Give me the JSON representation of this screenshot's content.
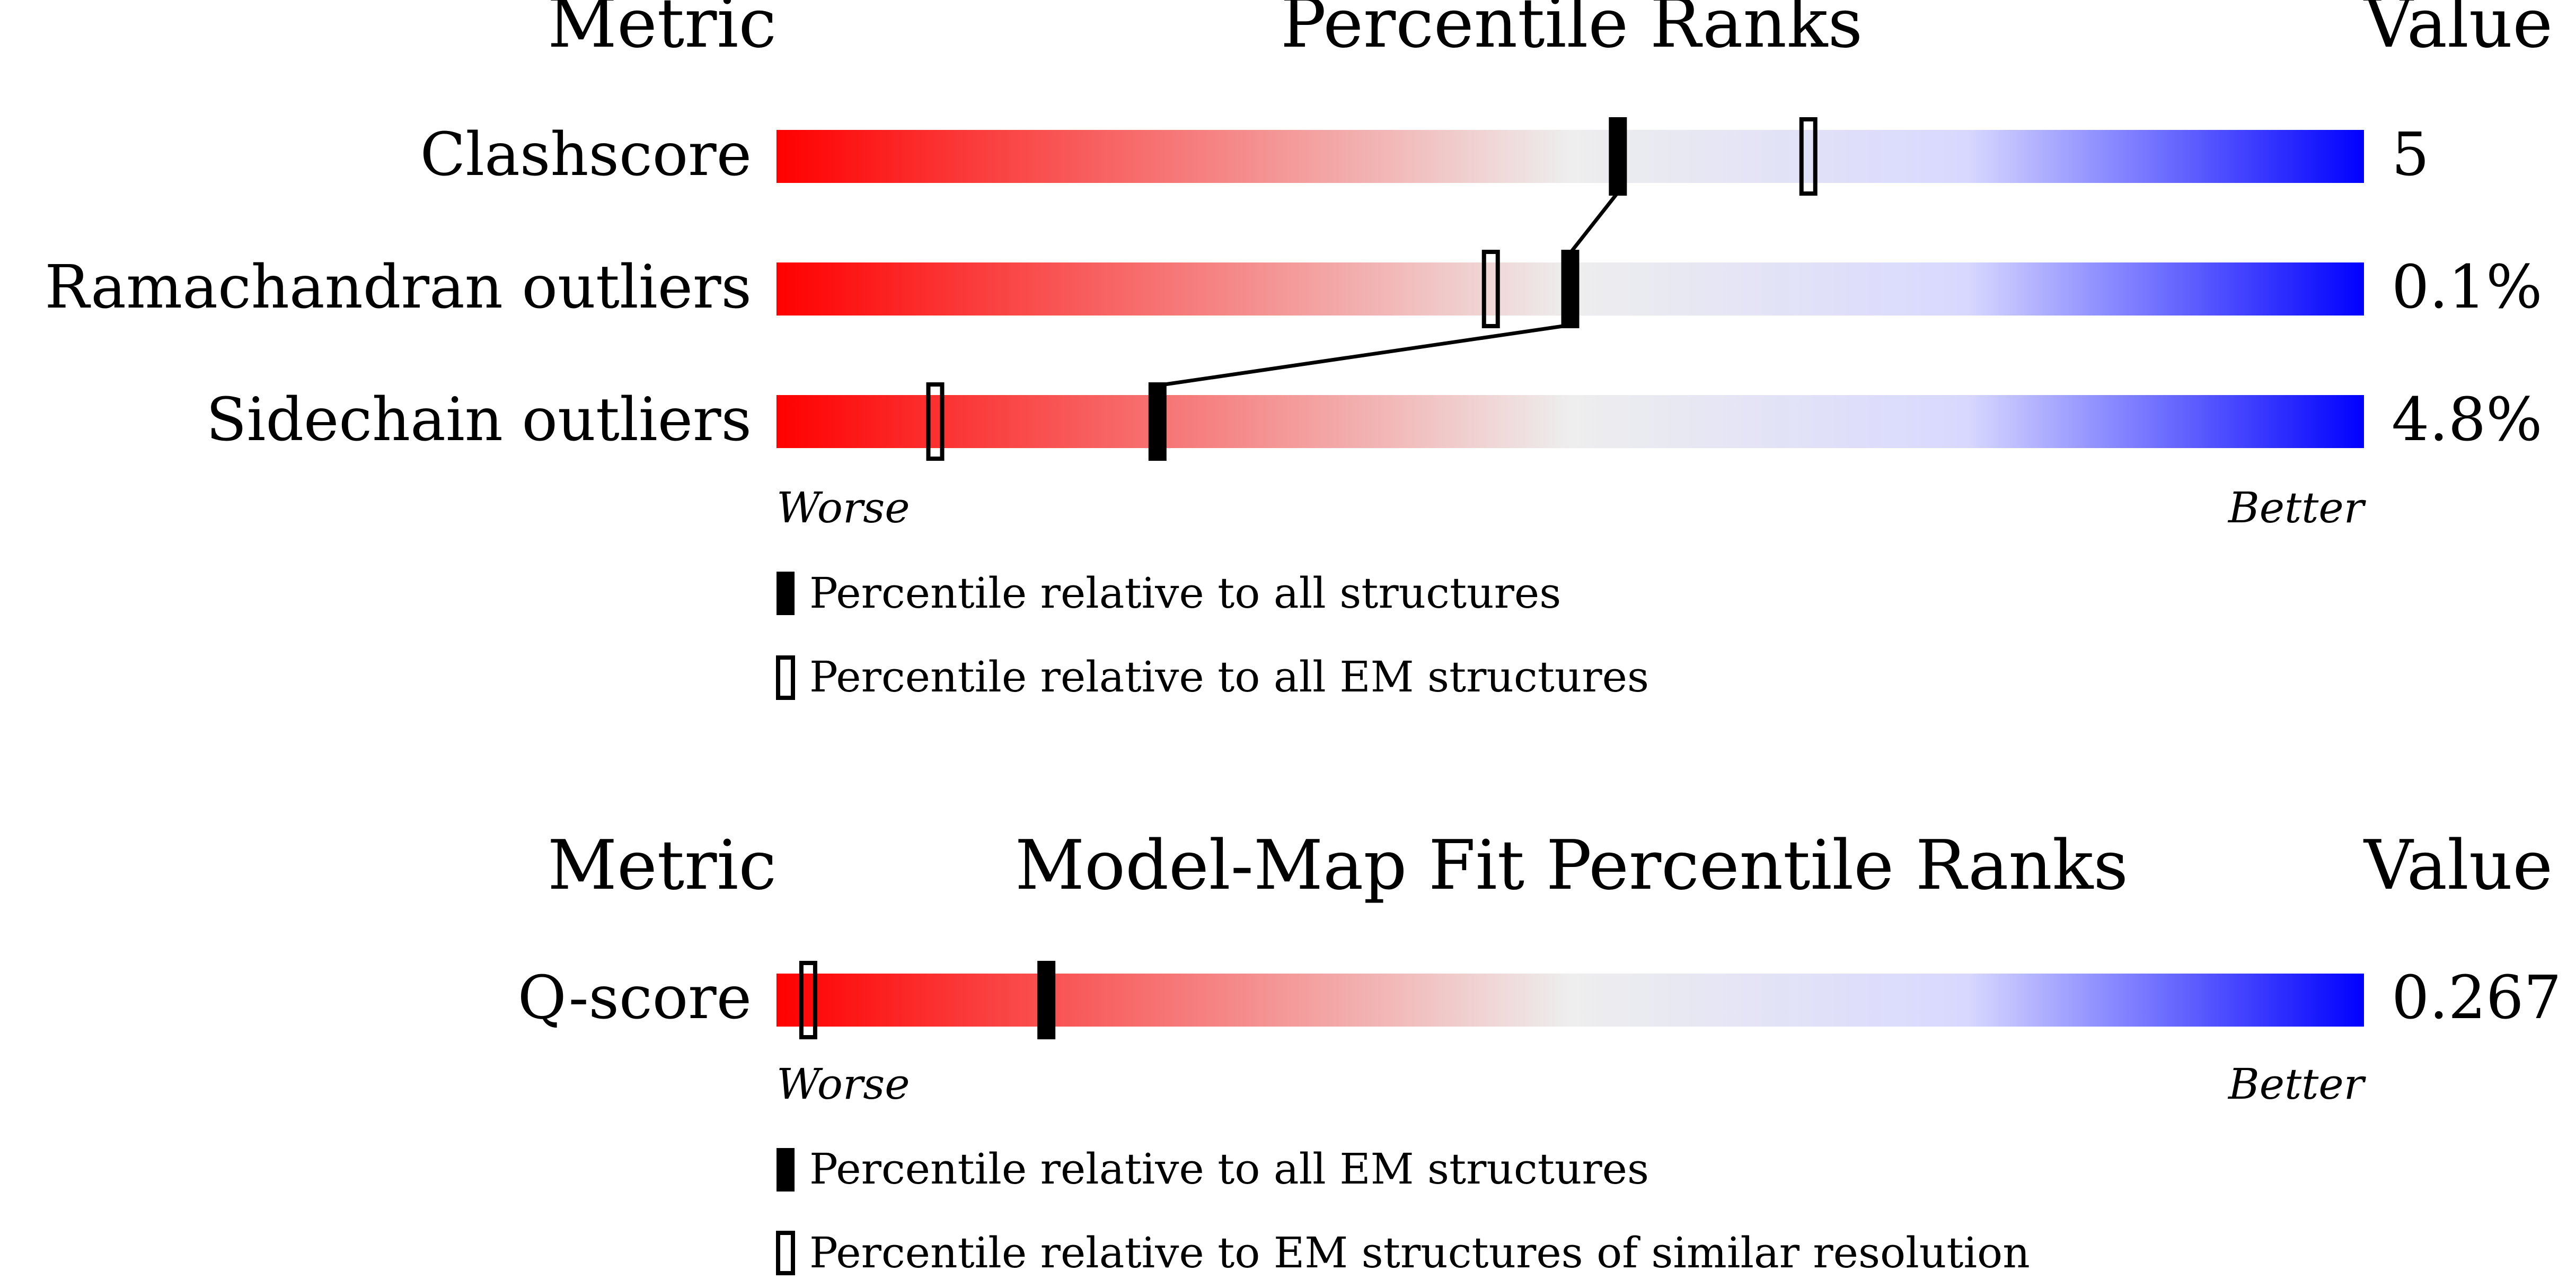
{
  "chart_data": [
    {
      "type": "bar",
      "title": "Percentile Ranks",
      "header_left": "Metric",
      "header_right": "Value",
      "metrics": [
        {
          "label": "Clashscore",
          "value": "5",
          "percentile_all": 53,
          "percentile_em": 65
        },
        {
          "label": "Ramachandran outliers",
          "value": "0.1%",
          "percentile_all": 50,
          "percentile_em": 45
        },
        {
          "label": "Sidechain outliers",
          "value": "4.8%",
          "percentile_all": 24,
          "percentile_em": 10
        }
      ],
      "worse_label": "Worse",
      "better_label": "Better",
      "legend": [
        {
          "marker": "filled",
          "label": "Percentile relative to all structures"
        },
        {
          "marker": "open",
          "label": "Percentile relative to all EM structures"
        }
      ],
      "xlim": [
        0,
        100
      ],
      "gradient_colors": [
        "#ff0000",
        "#eeeeee",
        "#0000ff"
      ]
    },
    {
      "type": "bar",
      "title": "Model-Map Fit Percentile Ranks",
      "header_left": "Metric",
      "header_right": "Value",
      "metrics": [
        {
          "label": "Q-score",
          "value": "0.267",
          "percentile_all": 17,
          "percentile_em": 2
        }
      ],
      "worse_label": "Worse",
      "better_label": "Better",
      "legend": [
        {
          "marker": "filled",
          "label": "Percentile relative to all EM structures"
        },
        {
          "marker": "open",
          "label": "Percentile relative to EM structures of similar resolution"
        }
      ],
      "xlim": [
        0,
        100
      ],
      "gradient_colors": [
        "#ff0000",
        "#eeeeee",
        "#0000ff"
      ]
    }
  ]
}
